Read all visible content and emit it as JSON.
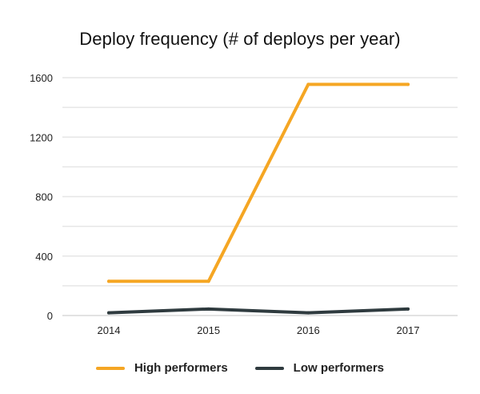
{
  "chart_data": {
    "type": "line",
    "title": "Deploy frequency (# of deploys per year)",
    "xlabel": "",
    "ylabel": "",
    "categories": [
      "2014",
      "2015",
      "2016",
      "2017"
    ],
    "ylim": [
      0,
      1600
    ],
    "yticks": [
      "0",
      "400",
      "800",
      "1200",
      "1600"
    ],
    "grid": true,
    "legend_position": "bottom-center",
    "series": [
      {
        "name": "High performers",
        "color": "#F5A623",
        "values": [
          230,
          230,
          1555,
          1555
        ]
      },
      {
        "name": "Low performers",
        "color": "#2F3B3F",
        "values": [
          18,
          44,
          18,
          44
        ]
      }
    ]
  }
}
